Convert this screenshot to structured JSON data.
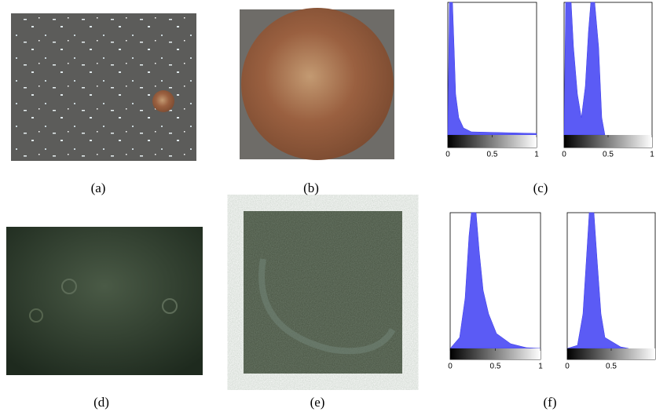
{
  "figure": {
    "panels": [
      {
        "caption": "(a)"
      },
      {
        "caption": "(b)"
      },
      {
        "caption": "(c)",
        "histograms": [
          {
            "xlim": [
              0,
              1
            ],
            "xticks": [
              0,
              0.5,
              1
            ]
          },
          {
            "xlim": [
              0,
              1
            ],
            "xticks": [
              0,
              0.5,
              1
            ]
          }
        ]
      },
      {
        "caption": "(d)"
      },
      {
        "caption": "(e)"
      },
      {
        "caption": "(f)",
        "histograms": [
          {
            "xlim": [
              0,
              1
            ],
            "xticks": [
              0,
              0.5,
              1
            ]
          },
          {
            "xlim": [
              0,
              1
            ],
            "xticks": [
              0,
              0.5
            ]
          }
        ]
      }
    ]
  }
}
